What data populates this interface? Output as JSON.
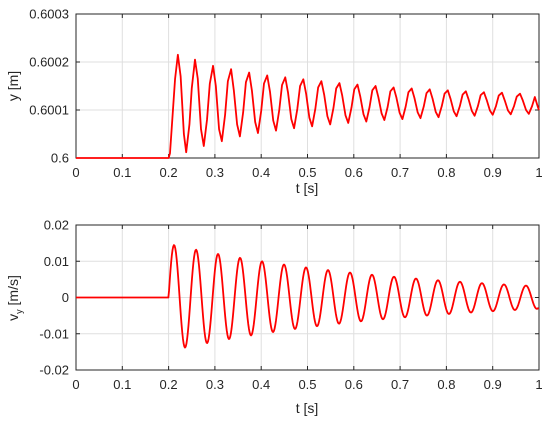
{
  "chart_data": [
    {
      "type": "line",
      "xlabel": "t [s]",
      "ylabel": "y [m]",
      "xlim": [
        0,
        1
      ],
      "ylim": [
        0.6,
        0.6003
      ],
      "xticks": [
        "0",
        "0.1",
        "0.2",
        "0.3",
        "0.4",
        "0.5",
        "0.6",
        "0.7",
        "0.8",
        "0.9",
        "1"
      ],
      "yticks": [
        "0.6",
        "0.6001",
        "0.6002",
        "0.6003"
      ],
      "grid": true,
      "color": "#ff0000",
      "series": [
        {
          "x": [
            0,
            0.2,
            0.203,
            0.208,
            0.214,
            0.22,
            0.226,
            0.233,
            0.238,
            0.245,
            0.25,
            0.257,
            0.263,
            0.27,
            0.276,
            0.283,
            0.289,
            0.296,
            0.302,
            0.309,
            0.315,
            0.322,
            0.328,
            0.335,
            0.341,
            0.348,
            0.354,
            0.361,
            0.367,
            0.374,
            0.38,
            0.387,
            0.393,
            0.4,
            0.406,
            0.413,
            0.419,
            0.426,
            0.432,
            0.439,
            0.445,
            0.452,
            0.458,
            0.465,
            0.471,
            0.478,
            0.484,
            0.491,
            0.497,
            0.504,
            0.51,
            0.517,
            0.523,
            0.53,
            0.536,
            0.543,
            0.549,
            0.556,
            0.562,
            0.569,
            0.575,
            0.582,
            0.588,
            0.595,
            0.601,
            0.608,
            0.614,
            0.621,
            0.627,
            0.634,
            0.64,
            0.647,
            0.653,
            0.66,
            0.666,
            0.673,
            0.679,
            0.686,
            0.692,
            0.699,
            0.705,
            0.712,
            0.718,
            0.725,
            0.731,
            0.738,
            0.744,
            0.751,
            0.757,
            0.764,
            0.77,
            0.777,
            0.783,
            0.79,
            0.796,
            0.803,
            0.809,
            0.816,
            0.822,
            0.829,
            0.835,
            0.842,
            0.848,
            0.855,
            0.861,
            0.868,
            0.874,
            0.881,
            0.887,
            0.894,
            0.9,
            0.907,
            0.913,
            0.92,
            0.926,
            0.933,
            0.939,
            0.946,
            0.952,
            0.959,
            0.965,
            0.972,
            0.978,
            0.985,
            0.991,
            0.998,
            1.0
          ],
          "y": [
            0.6,
            0.6,
            0.60001,
            0.60008,
            0.600165,
            0.600215,
            0.60017,
            0.60005,
            0.600012,
            0.60007,
            0.600145,
            0.600205,
            0.600165,
            0.60006,
            0.600025,
            0.60008,
            0.600155,
            0.600192,
            0.60015,
            0.60006,
            0.600035,
            0.60009,
            0.60016,
            0.600185,
            0.60014,
            0.60007,
            0.600045,
            0.600095,
            0.600158,
            0.600178,
            0.60014,
            0.600075,
            0.600052,
            0.600098,
            0.600155,
            0.600172,
            0.600138,
            0.600078,
            0.600057,
            0.6001,
            0.600152,
            0.600168,
            0.600136,
            0.600081,
            0.600062,
            0.600102,
            0.60015,
            0.600164,
            0.600134,
            0.600084,
            0.600066,
            0.600103,
            0.600147,
            0.60016,
            0.600132,
            0.600087,
            0.60007,
            0.600104,
            0.600145,
            0.600156,
            0.60013,
            0.600089,
            0.600073,
            0.600105,
            0.600143,
            0.600153,
            0.600128,
            0.600091,
            0.600076,
            0.600106,
            0.600141,
            0.60015,
            0.600127,
            0.600093,
            0.600079,
            0.600106,
            0.600139,
            0.600147,
            0.600126,
            0.600094,
            0.600081,
            0.600107,
            0.600137,
            0.600145,
            0.600125,
            0.600095,
            0.600083,
            0.600107,
            0.600135,
            0.600143,
            0.600124,
            0.600096,
            0.600085,
            0.600108,
            0.600134,
            0.600141,
            0.600123,
            0.600097,
            0.600087,
            0.600108,
            0.600132,
            0.600139,
            0.600122,
            0.600098,
            0.600088,
            0.600108,
            0.600131,
            0.600137,
            0.600121,
            0.600099,
            0.60009,
            0.600108,
            0.60013,
            0.600136,
            0.60012,
            0.600099,
            0.600091,
            0.600108,
            0.600128,
            0.600134,
            0.60012,
            0.6001,
            0.600092,
            0.600108,
            0.600127,
            0.600105,
            0.6001
          ]
        }
      ]
    },
    {
      "type": "line",
      "xlabel": "t [s]",
      "ylabel_main": "v",
      "ylabel_sub": "y",
      "ylabel_rest": " [m/s]",
      "xlim": [
        0,
        1
      ],
      "ylim": [
        -0.02,
        0.02
      ],
      "xticks": [
        "0",
        "0.1",
        "0.2",
        "0.3",
        "0.4",
        "0.5",
        "0.6",
        "0.7",
        "0.8",
        "0.9",
        "1"
      ],
      "yticks": [
        "-0.02",
        "-0.01",
        "0",
        "0.01",
        "0.02"
      ],
      "grid": true,
      "color": "#ff0000",
      "series": [
        {
          "model": "damped-sine",
          "t0": 0.2,
          "amplitude": 0.0148,
          "period": 0.0475,
          "decay_per_s": 1.95,
          "floor_amplitude": 0.0,
          "sample_dt": 0.0015
        }
      ]
    }
  ]
}
